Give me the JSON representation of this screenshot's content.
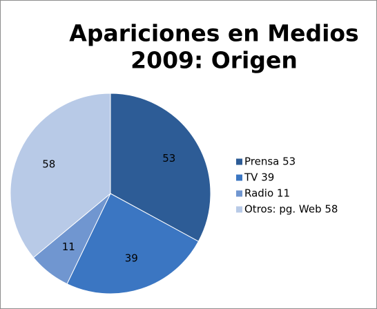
{
  "chart_data": {
    "type": "pie",
    "title": [
      "Apariciones en Medios",
      "2009: Origen"
    ],
    "categories": [
      "Prensa 53",
      "TV 39",
      "Radio 11",
      "Otros: pg. Web 58"
    ],
    "values": [
      53,
      39,
      11,
      58
    ],
    "colors": [
      "#2d5c96",
      "#3b76c2",
      "#7096d0",
      "#b8cae7"
    ],
    "legend": "right"
  }
}
